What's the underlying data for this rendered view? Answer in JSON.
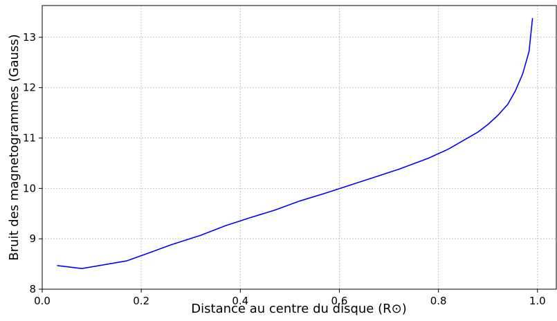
{
  "chart_data": {
    "type": "line",
    "x_label": "Distance au centre du disque (R⊙)",
    "y_label": "Bruit des magnetogrammes (Gauss)",
    "x": [
      0.03,
      0.08,
      0.17,
      0.21,
      0.26,
      0.32,
      0.37,
      0.42,
      0.47,
      0.52,
      0.57,
      0.62,
      0.67,
      0.72,
      0.78,
      0.82,
      0.85,
      0.88,
      0.9,
      0.92,
      0.94,
      0.955,
      0.97,
      0.983,
      0.99
    ],
    "series": [
      {
        "name": "bruit",
        "color": "#0000ff",
        "values": [
          8.47,
          8.41,
          8.56,
          8.7,
          8.88,
          9.07,
          9.26,
          9.42,
          9.57,
          9.75,
          9.9,
          10.06,
          10.22,
          10.38,
          10.6,
          10.78,
          10.95,
          11.12,
          11.27,
          11.45,
          11.67,
          11.93,
          12.27,
          12.72,
          13.38
        ]
      }
    ],
    "xlim": [
      0,
      1.038
    ],
    "ylim": [
      8,
      13.63
    ],
    "xticks": [
      {
        "value": 0,
        "label": "0.0"
      },
      0.2,
      0.4,
      0.6,
      0.8,
      {
        "value": 1,
        "label": "1.0"
      }
    ],
    "yticks": [
      8,
      9,
      10,
      11,
      12,
      13
    ],
    "grid": true
  }
}
